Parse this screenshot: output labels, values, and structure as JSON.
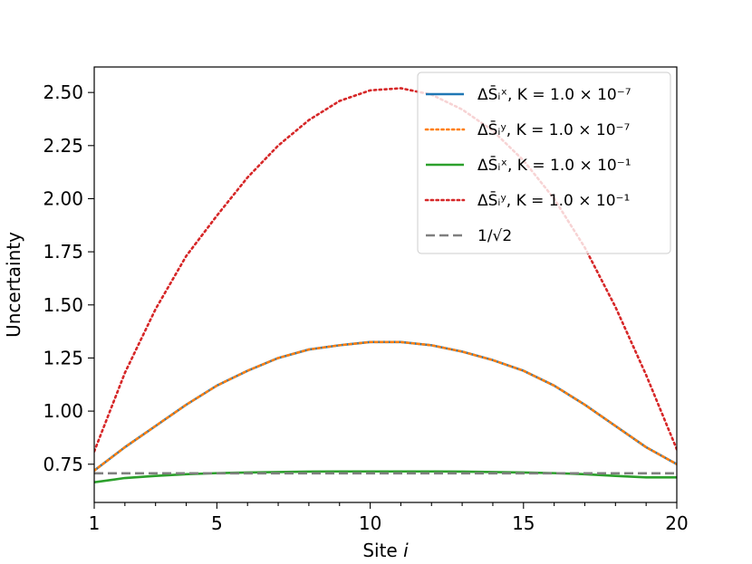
{
  "chart_data": {
    "type": "line",
    "xlabel": "Site i",
    "ylabel": "Uncertainty",
    "xlim": [
      1,
      20
    ],
    "ylim": [
      0.57,
      2.62
    ],
    "xticks": [
      "1",
      "5",
      "10",
      "15",
      "20"
    ],
    "yticks": [
      "0.75",
      "1.00",
      "1.25",
      "1.50",
      "1.75",
      "2.00",
      "2.25",
      "2.50"
    ],
    "grid": false,
    "legend_position": "top-right",
    "series": [
      {
        "name": "ΔS̄ᵢˣ, K = 1.0 × 10⁻⁷",
        "color": "#1f77b4",
        "style": "solid",
        "x": [
          1,
          2,
          3,
          4,
          5,
          6,
          7,
          8,
          9,
          10,
          11,
          12,
          13,
          14,
          15,
          16,
          17,
          18,
          19,
          20
        ],
        "values": [
          0.72,
          0.83,
          0.93,
          1.03,
          1.12,
          1.19,
          1.25,
          1.29,
          1.31,
          1.325,
          1.325,
          1.31,
          1.28,
          1.24,
          1.19,
          1.12,
          1.03,
          0.93,
          0.83,
          0.75
        ]
      },
      {
        "name": "ΔS̄ᵢʸ, K = 1.0 × 10⁻⁷",
        "color": "#ff7f0e",
        "style": "dotted",
        "x": [
          1,
          2,
          3,
          4,
          5,
          6,
          7,
          8,
          9,
          10,
          11,
          12,
          13,
          14,
          15,
          16,
          17,
          18,
          19,
          20
        ],
        "values": [
          0.72,
          0.83,
          0.93,
          1.03,
          1.12,
          1.19,
          1.25,
          1.29,
          1.31,
          1.325,
          1.325,
          1.31,
          1.28,
          1.24,
          1.19,
          1.12,
          1.03,
          0.93,
          0.83,
          0.75
        ]
      },
      {
        "name": "ΔS̄ᵢˣ, K = 1.0 × 10⁻¹",
        "color": "#2ca02c",
        "style": "solid",
        "x": [
          1,
          2,
          3,
          4,
          5,
          6,
          7,
          8,
          9,
          10,
          11,
          12,
          13,
          14,
          15,
          16,
          17,
          18,
          19,
          20
        ],
        "values": [
          0.665,
          0.685,
          0.695,
          0.703,
          0.708,
          0.711,
          0.713,
          0.715,
          0.716,
          0.716,
          0.716,
          0.716,
          0.715,
          0.713,
          0.711,
          0.708,
          0.703,
          0.695,
          0.688,
          0.688
        ]
      },
      {
        "name": "ΔS̄ᵢʸ, K = 1.0 × 10⁻¹",
        "color": "#d62728",
        "style": "dotted",
        "x": [
          1,
          2,
          3,
          4,
          5,
          6,
          7,
          8,
          9,
          10,
          11,
          12,
          13,
          14,
          15,
          16,
          17,
          18,
          19,
          20
        ],
        "values": [
          0.81,
          1.18,
          1.48,
          1.73,
          1.92,
          2.1,
          2.25,
          2.37,
          2.46,
          2.51,
          2.52,
          2.49,
          2.42,
          2.32,
          2.18,
          2.0,
          1.77,
          1.49,
          1.17,
          0.82
        ]
      },
      {
        "name": "1/√2",
        "color": "#7f7f7f",
        "style": "dashed",
        "x": [
          1,
          20
        ],
        "values": [
          0.7071,
          0.7071
        ]
      }
    ]
  }
}
